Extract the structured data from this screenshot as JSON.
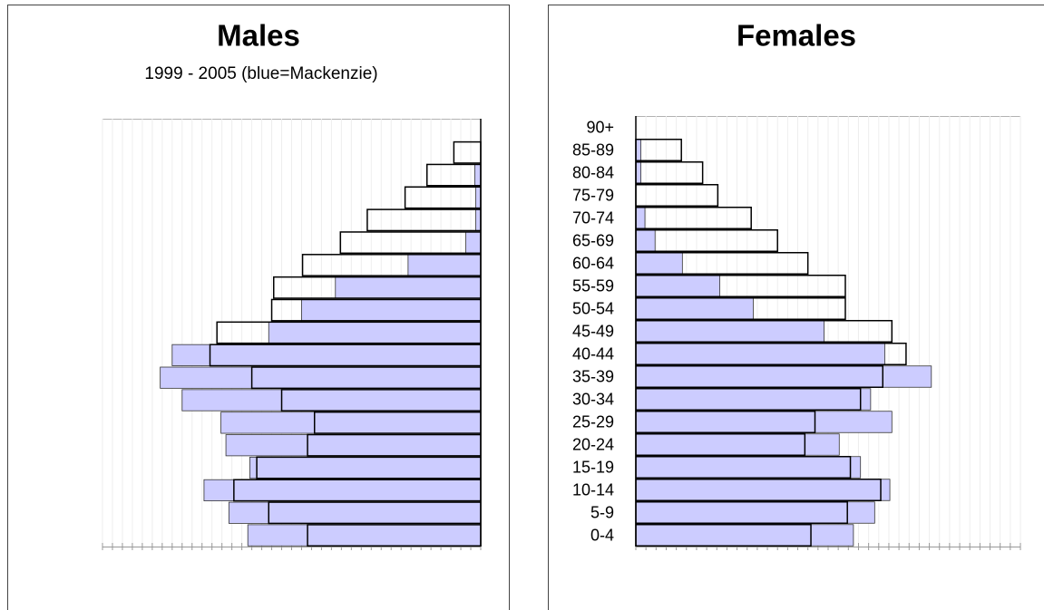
{
  "chart_data": [
    {
      "type": "bar",
      "orientation": "horizontal",
      "title": "Males",
      "subtitle": "1999 - 2005 (blue=Mackenzie)",
      "x_reversed": true,
      "series": [
        {
          "color": "#ccccff",
          "values": [
            0,
            0,
            0.6,
            0.5,
            0.5,
            1.5,
            7.3,
            14.6,
            18.0,
            21.3,
            31.0,
            32.2,
            30.0,
            26.1,
            25.6,
            23.2,
            27.8,
            25.3,
            23.4
          ]
        },
        {
          "color": "none",
          "values": [
            0,
            2.7,
            5.4,
            7.6,
            11.4,
            14.1,
            17.9,
            20.8,
            21.0,
            26.5,
            27.2,
            23.0,
            20.0,
            16.7,
            17.4,
            22.5,
            24.8,
            21.3,
            17.4
          ]
        }
      ],
      "xlim": [
        0,
        38
      ],
      "xticks": [
        0,
        1,
        2,
        3,
        4,
        5,
        6,
        7,
        8,
        9,
        10,
        11,
        12,
        13,
        14,
        15,
        16,
        17,
        18,
        19,
        20,
        21,
        22,
        23,
        24,
        25,
        26,
        27,
        28,
        29,
        30,
        31,
        32,
        33,
        34,
        35,
        36,
        37,
        38
      ],
      "grid": true
    },
    {
      "type": "bar",
      "orientation": "horizontal",
      "title": "Females",
      "x_reversed": false,
      "categories": [
        "90+",
        "85-89",
        "80-84",
        "75-79",
        "70-74",
        "65-69",
        "60-64",
        "55-59",
        "50-54",
        "45-49",
        "40-44",
        "35-39",
        "30-34",
        "25-29",
        "20-24",
        "15-19",
        "10-14",
        "5-9",
        "0-4"
      ],
      "series": [
        {
          "color": "#ccccff",
          "values": [
            0,
            0.5,
            0.5,
            0,
            0.9,
            1.9,
            4.6,
            8.3,
            11.6,
            18.6,
            24.6,
            29.2,
            23.2,
            25.3,
            20.1,
            22.2,
            25.1,
            23.6,
            21.5
          ]
        },
        {
          "color": "none",
          "values": [
            0,
            4.5,
            6.6,
            8.1,
            11.4,
            14.0,
            17.0,
            20.7,
            20.7,
            25.3,
            26.7,
            24.4,
            22.2,
            17.7,
            16.7,
            21.2,
            24.2,
            20.9,
            17.3
          ]
        }
      ],
      "xlim": [
        0,
        38
      ],
      "xticks": [
        0,
        1,
        2,
        3,
        4,
        5,
        6,
        7,
        8,
        9,
        10,
        11,
        12,
        13,
        14,
        15,
        16,
        17,
        18,
        19,
        20,
        21,
        22,
        23,
        24,
        25,
        26,
        27,
        28,
        29,
        30,
        31,
        32,
        33,
        34,
        35,
        36,
        37,
        38
      ],
      "grid": true
    }
  ]
}
